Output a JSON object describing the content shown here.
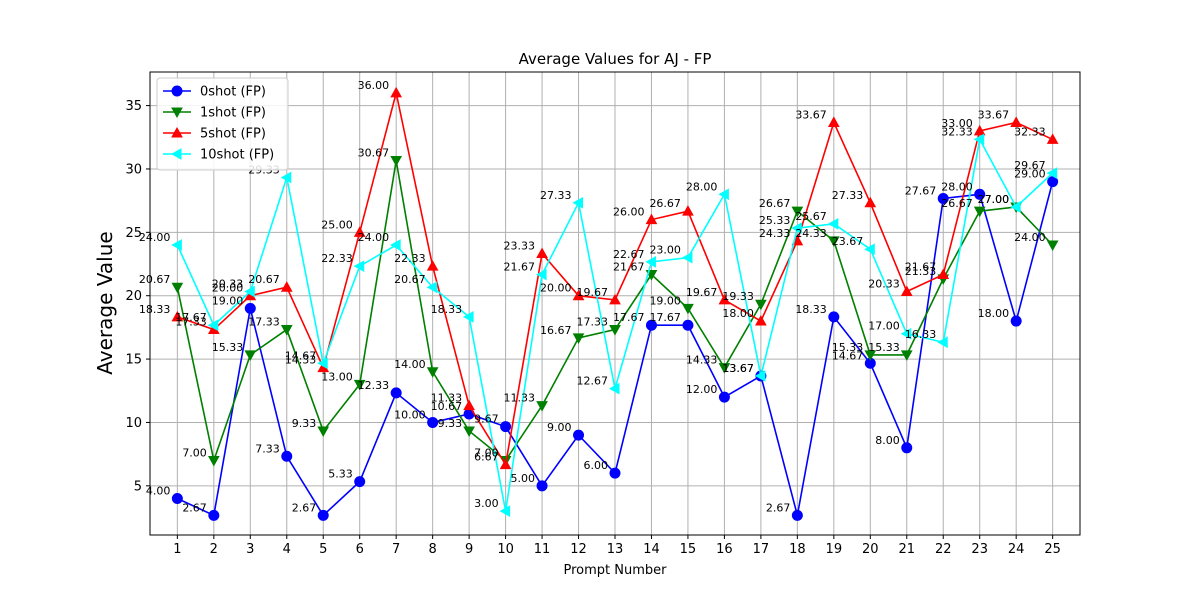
{
  "chart_data": {
    "type": "line",
    "title": "Average Values for AJ - FP",
    "xlabel": "Prompt Number",
    "ylabel": "Average Value",
    "x": [
      1,
      2,
      3,
      4,
      5,
      6,
      7,
      8,
      9,
      10,
      11,
      12,
      13,
      14,
      15,
      16,
      17,
      18,
      19,
      20,
      21,
      22,
      23,
      24,
      25
    ],
    "xlim": [
      0.25,
      25.75
    ],
    "ylim": [
      1.12,
      37.65
    ],
    "yticks": [
      5,
      10,
      15,
      20,
      25,
      30,
      35
    ],
    "grid": true,
    "legend_position": "upper-left",
    "series": [
      {
        "name": "0shot (FP)",
        "color": "#0000ff",
        "marker": "circle",
        "values": [
          4.0,
          2.67,
          19.0,
          7.33,
          2.67,
          5.33,
          12.33,
          10.0,
          10.67,
          9.67,
          5.0,
          9.0,
          6.0,
          17.67,
          17.67,
          12.0,
          13.67,
          2.67,
          18.33,
          14.67,
          8.0,
          27.67,
          28.0,
          18.0,
          29.0
        ]
      },
      {
        "name": "1shot (FP)",
        "color": "#008000",
        "marker": "triangle-down",
        "values": [
          20.67,
          7.0,
          15.33,
          17.33,
          9.33,
          13.0,
          30.67,
          14.0,
          9.33,
          7.0,
          11.33,
          16.67,
          17.33,
          21.67,
          19.0,
          14.33,
          19.33,
          26.67,
          24.33,
          15.33,
          15.33,
          21.33,
          26.67,
          27.0,
          24.0
        ]
      },
      {
        "name": "5shot (FP)",
        "color": "#ff0000",
        "marker": "triangle-up",
        "values": [
          18.33,
          17.33,
          20.0,
          20.67,
          14.33,
          25.0,
          36.0,
          22.33,
          11.33,
          6.67,
          23.33,
          20.0,
          19.67,
          26.0,
          26.67,
          19.67,
          18.0,
          24.33,
          33.67,
          27.33,
          20.33,
          21.67,
          33.0,
          33.67,
          32.33
        ]
      },
      {
        "name": "10shot (FP)",
        "color": "#00ffff",
        "marker": "triangle-left",
        "values": [
          24.0,
          17.67,
          20.33,
          29.33,
          14.67,
          22.33,
          24.0,
          20.67,
          18.33,
          3.0,
          21.67,
          27.33,
          12.67,
          22.67,
          23.0,
          28.0,
          13.67,
          25.33,
          25.67,
          23.67,
          17.0,
          16.33,
          32.33,
          27.0,
          29.67
        ]
      }
    ]
  }
}
